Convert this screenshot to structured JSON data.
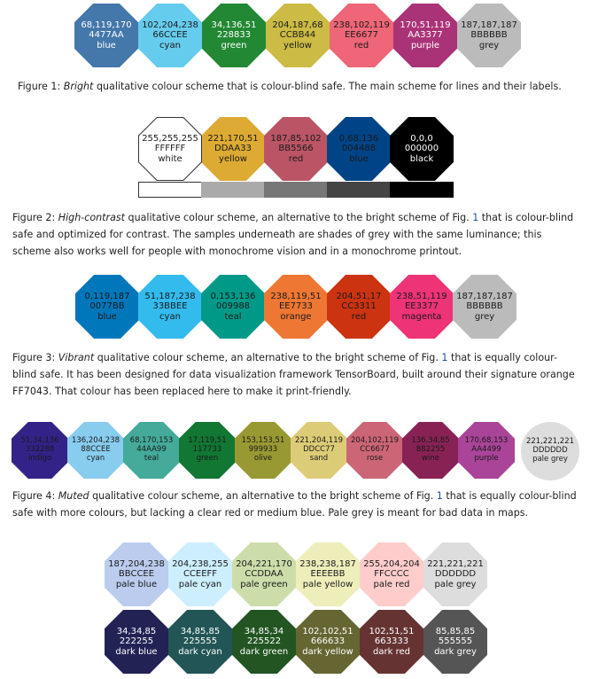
{
  "figure1": {
    "swatches": [
      {
        "rgb": "68,119,170",
        "hex": "4477AA",
        "name": "blue",
        "color": "#4477AA",
        "text": "#ffffff"
      },
      {
        "rgb": "102,204,238",
        "hex": "66CCEE",
        "name": "cyan",
        "color": "#66CCEE",
        "text": "#1a1a1a"
      },
      {
        "rgb": "34,136,51",
        "hex": "228833",
        "name": "green",
        "color": "#228833",
        "text": "#ffffff"
      },
      {
        "rgb": "204,187,68",
        "hex": "CCBB44",
        "name": "yellow",
        "color": "#CCBB44",
        "text": "#1a1a1a"
      },
      {
        "rgb": "238,102,119",
        "hex": "EE6677",
        "name": "red",
        "color": "#EE6677",
        "text": "#1a1a1a"
      },
      {
        "rgb": "170,51,119",
        "hex": "AA3377",
        "name": "purple",
        "color": "#AA3377",
        "text": "#ffffff"
      },
      {
        "rgb": "187,187,187",
        "hex": "BBBBBB",
        "name": "grey",
        "color": "#BBBBBB",
        "text": "#1a1a1a"
      }
    ],
    "caption_label": "Figure 1:",
    "caption_em": "Bright",
    "caption_rest": " qualitative colour scheme that is colour-blind safe. The main scheme for lines and their labels."
  },
  "figure2": {
    "swatches": [
      {
        "rgb": "255,255,255",
        "hex": "FFFFFF",
        "name": "white",
        "color": "#FFFFFF",
        "text": "#1a1a1a"
      },
      {
        "rgb": "221,170,51",
        "hex": "DDAA33",
        "name": "yellow",
        "color": "#DDAA33",
        "text": "#1a1a1a"
      },
      {
        "rgb": "187,85,102",
        "hex": "BB5566",
        "name": "red",
        "color": "#BB5566",
        "text": "#1a1a1a"
      },
      {
        "rgb": "0,68,136",
        "hex": "004488",
        "name": "blue",
        "color": "#004488",
        "text": "#1a1a1a"
      },
      {
        "rgb": "0,0,0",
        "hex": "000000",
        "name": "black",
        "color": "#000000",
        "text": "#ffffff"
      }
    ],
    "grey_colors": [
      "#FFFFFF",
      "#AAAAAA",
      "#777777",
      "#444444",
      "#000000"
    ],
    "caption_label": "Figure 2:",
    "caption_em": "High-contrast",
    "caption_a": " qualitative colour scheme, an alternative to the bright scheme of Fig. ",
    "caption_ref": "1",
    "caption_b": " that is colour-blind safe and optimized for contrast. The samples underneath are shades of grey with the same luminance; this scheme also works well for people with monochrome vision and in a monochrome printout."
  },
  "figure3": {
    "swatches": [
      {
        "rgb": "0,119,187",
        "hex": "0077BB",
        "name": "blue",
        "color": "#0077BB",
        "text": "#1a1a1a"
      },
      {
        "rgb": "51,187,238",
        "hex": "33BBEE",
        "name": "cyan",
        "color": "#33BBEE",
        "text": "#1a1a1a"
      },
      {
        "rgb": "0,153,136",
        "hex": "009988",
        "name": "teal",
        "color": "#009988",
        "text": "#1a1a1a"
      },
      {
        "rgb": "238,119,51",
        "hex": "EE7733",
        "name": "orange",
        "color": "#EE7733",
        "text": "#1a1a1a"
      },
      {
        "rgb": "204,51,17",
        "hex": "CC3311",
        "name": "red",
        "color": "#CC3311",
        "text": "#1a1a1a"
      },
      {
        "rgb": "238,51,119",
        "hex": "EE3377",
        "name": "magenta",
        "color": "#EE3377",
        "text": "#1a1a1a"
      },
      {
        "rgb": "187,187,187",
        "hex": "BBBBBB",
        "name": "grey",
        "color": "#BBBBBB",
        "text": "#1a1a1a"
      }
    ],
    "caption_label": "Figure 3:",
    "caption_em": "Vibrant",
    "caption_a": " qualitative colour scheme, an alternative to the bright scheme of Fig. ",
    "caption_ref": "1",
    "caption_b": " that is equally colour-blind safe. It has been designed for data visualization framework TensorBoard, built around their signature orange FF7043. That colour has been replaced here to make it print-friendly."
  },
  "figure4": {
    "swatches": [
      {
        "rgb": "51,34,136",
        "hex": "332288",
        "name": "indigo",
        "color": "#332288",
        "text": "#1a1a1a"
      },
      {
        "rgb": "136,204,238",
        "hex": "88CCEE",
        "name": "cyan",
        "color": "#88CCEE",
        "text": "#1a1a1a"
      },
      {
        "rgb": "68,170,153",
        "hex": "44AA99",
        "name": "teal",
        "color": "#44AA99",
        "text": "#1a1a1a"
      },
      {
        "rgb": "17,119,51",
        "hex": "117733",
        "name": "green",
        "color": "#117733",
        "text": "#1a1a1a"
      },
      {
        "rgb": "153,153,51",
        "hex": "999933",
        "name": "olive",
        "color": "#999933",
        "text": "#1a1a1a"
      },
      {
        "rgb": "221,204,119",
        "hex": "DDCC77",
        "name": "sand",
        "color": "#DDCC77",
        "text": "#1a1a1a"
      },
      {
        "rgb": "204,102,119",
        "hex": "CC6677",
        "name": "rose",
        "color": "#CC6677",
        "text": "#1a1a1a"
      },
      {
        "rgb": "136,34,85",
        "hex": "882255",
        "name": "wine",
        "color": "#882255",
        "text": "#1a1a1a"
      },
      {
        "rgb": "170,68,153",
        "hex": "AA4499",
        "name": "purple",
        "color": "#AA4499",
        "text": "#1a1a1a"
      }
    ],
    "bad": {
      "rgb": "221,221,221",
      "hex": "DDDDDD",
      "name": "pale grey",
      "color": "#DDDDDD",
      "text": "#1a1a1a"
    },
    "caption_label": "Figure 4:",
    "caption_em": "Muted",
    "caption_a": " qualitative colour scheme, an alternative to the bright scheme of Fig. ",
    "caption_ref": "1",
    "caption_b": " that is equally colour-blind safe with more colours, but lacking a clear red or medium blue. Pale grey is meant for bad data in maps."
  },
  "figure5": {
    "pale": [
      {
        "rgb": "187,204,238",
        "hex": "BBCCEE",
        "name": "pale blue",
        "color": "#BBCCEE",
        "text": "#1a1a1a"
      },
      {
        "rgb": "204,238,255",
        "hex": "CCEEFF",
        "name": "pale cyan",
        "color": "#CCEEFF",
        "text": "#1a1a1a"
      },
      {
        "rgb": "204,221,170",
        "hex": "CCDDAA",
        "name": "pale green",
        "color": "#CCDDAA",
        "text": "#1a1a1a"
      },
      {
        "rgb": "238,238,187",
        "hex": "EEEEBB",
        "name": "pale yellow",
        "color": "#EEEEBB",
        "text": "#1a1a1a"
      },
      {
        "rgb": "255,204,204",
        "hex": "FFCCCC",
        "name": "pale red",
        "color": "#FFCCCC",
        "text": "#1a1a1a"
      },
      {
        "rgb": "221,221,221",
        "hex": "DDDDDD",
        "name": "pale grey",
        "color": "#DDDDDD",
        "text": "#1a1a1a"
      }
    ],
    "dark": [
      {
        "rgb": "34,34,85",
        "hex": "222255",
        "name": "dark blue",
        "color": "#222255",
        "text": "#ffffff"
      },
      {
        "rgb": "34,85,85",
        "hex": "225555",
        "name": "dark cyan",
        "color": "#225555",
        "text": "#ffffff"
      },
      {
        "rgb": "34,85,34",
        "hex": "225522",
        "name": "dark green",
        "color": "#225522",
        "text": "#ffffff"
      },
      {
        "rgb": "102,102,51",
        "hex": "666633",
        "name": "dark yellow",
        "color": "#666633",
        "text": "#ffffff"
      },
      {
        "rgb": "102,51,51",
        "hex": "663333",
        "name": "dark red",
        "color": "#663333",
        "text": "#ffffff"
      },
      {
        "rgb": "85,85,85",
        "hex": "555555",
        "name": "dark grey",
        "color": "#555555",
        "text": "#ffffff"
      }
    ]
  }
}
